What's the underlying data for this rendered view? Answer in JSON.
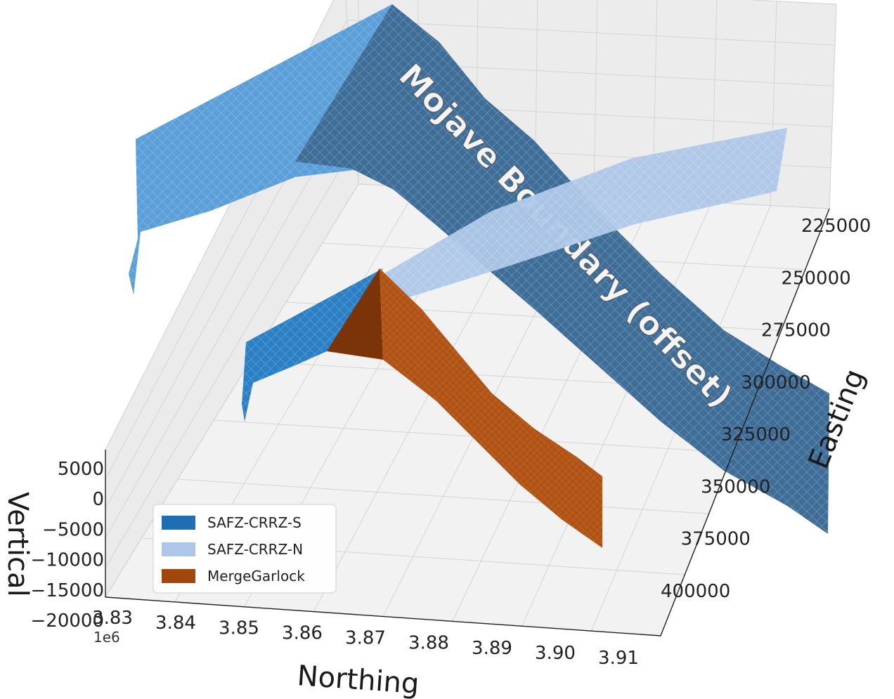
{
  "chart_data": {
    "type": "surface3d",
    "title": "",
    "xlabel": "Northing",
    "ylabel": "Easting",
    "zlabel": "Vertical",
    "x_offset_label": "1e6",
    "x_ticks": [
      "3.83",
      "3.84",
      "3.85",
      "3.86",
      "3.87",
      "3.88",
      "3.89",
      "3.90",
      "3.91"
    ],
    "y_ticks": [
      "225000",
      "250000",
      "275000",
      "300000",
      "325000",
      "350000",
      "375000",
      "400000"
    ],
    "z_ticks": [
      "5000",
      "0",
      "−5000",
      "−10000",
      "−15000",
      "−20000"
    ],
    "xlim": [
      3.83,
      3.91
    ],
    "ylim": [
      225000,
      400000
    ],
    "zlim": [
      -20000,
      5000
    ],
    "grid": true,
    "legend_position": "lower-left",
    "series": [
      {
        "name": "SAFZ-CRRZ-S",
        "color": "#1f6eb4"
      },
      {
        "name": "SAFZ-CRRZ-N",
        "color": "#aec7e8"
      },
      {
        "name": "MergeGarlock",
        "color": "#a0470c"
      }
    ],
    "offset_surface": {
      "label": "Mojave Boundary (offset)",
      "color": "#3a6b95"
    }
  }
}
